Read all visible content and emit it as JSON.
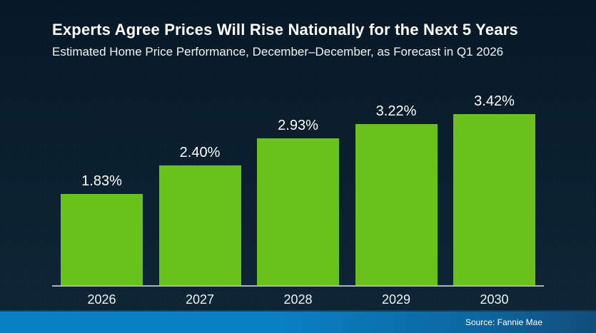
{
  "page": {
    "background": "#0b2030"
  },
  "chart_data": {
    "type": "bar",
    "title": "Experts Agree Prices Will Rise Nationally for the Next 5 Years",
    "subtitle": "Estimated Home Price Performance, December–December, as Forecast in Q1 2026",
    "categories": [
      "2026",
      "2027",
      "2028",
      "2029",
      "2030"
    ],
    "values": [
      1.83,
      2.4,
      2.93,
      3.22,
      3.42
    ],
    "value_labels": [
      "1.83%",
      "2.40%",
      "2.93%",
      "3.22%",
      "3.42%"
    ],
    "xlabel": "",
    "ylabel": "",
    "ylim": [
      0,
      3.42
    ],
    "grid": false,
    "legend": false,
    "bar_color": "#69c21c",
    "axis_line_color": "#a9b4bc",
    "label_color": "#ffffff"
  },
  "footer": {
    "source": "Source: Fannie Mae",
    "gradient_left": "#0a81c6",
    "gradient_mid": "#0d669f",
    "gradient_right": "#124d7b"
  }
}
